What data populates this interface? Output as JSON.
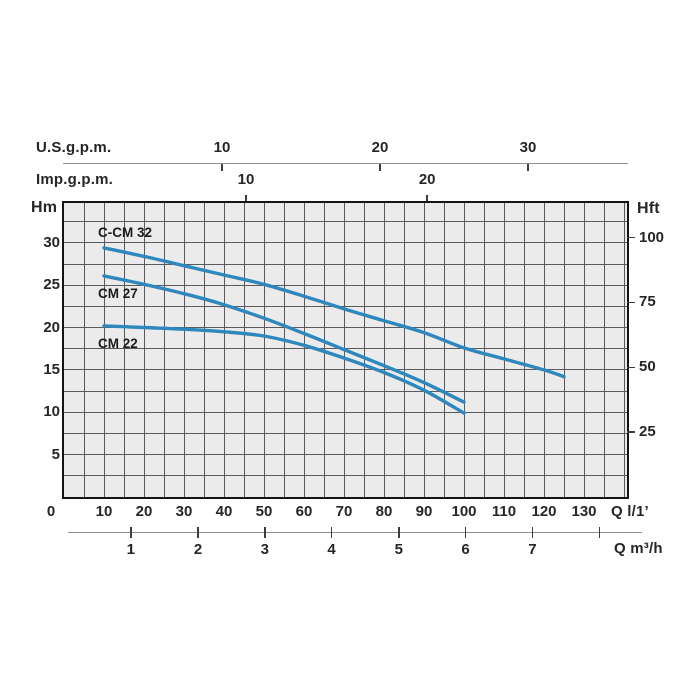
{
  "chart_data": {
    "type": "line",
    "title": "",
    "description": "Pump performance curves: head (Hm / Hft) versus flow rate (Q)",
    "curve_color": "#2e87bd",
    "q_range": [
      0,
      140.75
    ],
    "hm_range": [
      0,
      34.7
    ],
    "grid": {
      "q_step": 5,
      "hm_step": 2.5,
      "grid_on": true
    },
    "series": [
      {
        "name": "C-CM 32",
        "label_q": 8.5,
        "label_hm": 31.0,
        "points": [
          [
            10,
            29.4
          ],
          [
            20,
            28.4
          ],
          [
            30,
            27.3
          ],
          [
            40,
            26.2
          ],
          [
            50,
            25.1
          ],
          [
            60,
            23.7
          ],
          [
            70,
            22.2
          ],
          [
            80,
            20.8
          ],
          [
            90,
            19.4
          ],
          [
            100,
            17.6
          ],
          [
            110,
            16.3
          ],
          [
            120,
            15.0
          ],
          [
            125,
            14.2
          ]
        ]
      },
      {
        "name": "CM 27",
        "label_q": 8.5,
        "label_hm": 23.9,
        "points": [
          [
            10,
            26.1
          ],
          [
            20,
            25.1
          ],
          [
            30,
            24.0
          ],
          [
            40,
            22.7
          ],
          [
            50,
            21.1
          ],
          [
            60,
            19.3
          ],
          [
            70,
            17.4
          ],
          [
            80,
            15.5
          ],
          [
            90,
            13.5
          ],
          [
            100,
            11.2
          ]
        ]
      },
      {
        "name": "CM 22",
        "label_q": 8.5,
        "label_hm": 17.9,
        "points": [
          [
            10,
            20.2
          ],
          [
            20,
            20.0
          ],
          [
            30,
            19.8
          ],
          [
            40,
            19.5
          ],
          [
            50,
            19.0
          ],
          [
            60,
            17.9
          ],
          [
            70,
            16.4
          ],
          [
            80,
            14.7
          ],
          [
            90,
            12.6
          ],
          [
            100,
            9.9
          ]
        ]
      }
    ],
    "x_axes": {
      "usgpm": {
        "label": "U.S.g.p.m.",
        "ticks": [
          {
            "label": "10",
            "q": 39.5
          },
          {
            "label": "20",
            "q": 79.0
          },
          {
            "label": "30",
            "q": 116.0
          }
        ]
      },
      "impgpm": {
        "label": "Imp.g.p.m.",
        "ticks": [
          {
            "label": "10",
            "q": 45.5
          },
          {
            "label": "20",
            "q": 90.8
          }
        ]
      },
      "lmin": {
        "label": "Q l/1’",
        "ticks": [
          {
            "label": "0",
            "q": 0
          },
          {
            "label": "10",
            "q": 10
          },
          {
            "label": "20",
            "q": 20
          },
          {
            "label": "30",
            "q": 30
          },
          {
            "label": "40",
            "q": 40
          },
          {
            "label": "50",
            "q": 50
          },
          {
            "label": "60",
            "q": 60
          },
          {
            "label": "70",
            "q": 70
          },
          {
            "label": "80",
            "q": 80
          },
          {
            "label": "90",
            "q": 90
          },
          {
            "label": "100",
            "q": 100
          },
          {
            "label": "110",
            "q": 110
          },
          {
            "label": "120",
            "q": 120
          },
          {
            "label": "130",
            "q": 130
          }
        ]
      },
      "m3h": {
        "label": "Q m³/h",
        "ticks": [
          {
            "label": "1",
            "q": 16.7
          },
          {
            "label": "2",
            "q": 33.5
          },
          {
            "label": "3",
            "q": 50.2
          },
          {
            "label": "4",
            "q": 66.9
          },
          {
            "label": "5",
            "q": 83.7
          },
          {
            "label": "6",
            "q": 100.4
          },
          {
            "label": "7",
            "q": 117.1
          },
          {
            "label": "",
            "q": 133.9
          }
        ]
      }
    },
    "y_axes": {
      "hm": {
        "label": "Hm",
        "ticks": [
          {
            "label": "5",
            "hm": 5
          },
          {
            "label": "10",
            "hm": 10
          },
          {
            "label": "15",
            "hm": 15
          },
          {
            "label": "20",
            "hm": 20
          },
          {
            "label": "25",
            "hm": 25
          },
          {
            "label": "30",
            "hm": 30
          }
        ]
      },
      "hft": {
        "label": "Hft",
        "ticks": [
          {
            "label": "25",
            "hm": 7.66
          },
          {
            "label": "50",
            "hm": 15.31
          },
          {
            "label": "75",
            "hm": 22.97
          },
          {
            "label": "100",
            "hm": 30.62
          }
        ]
      }
    }
  }
}
